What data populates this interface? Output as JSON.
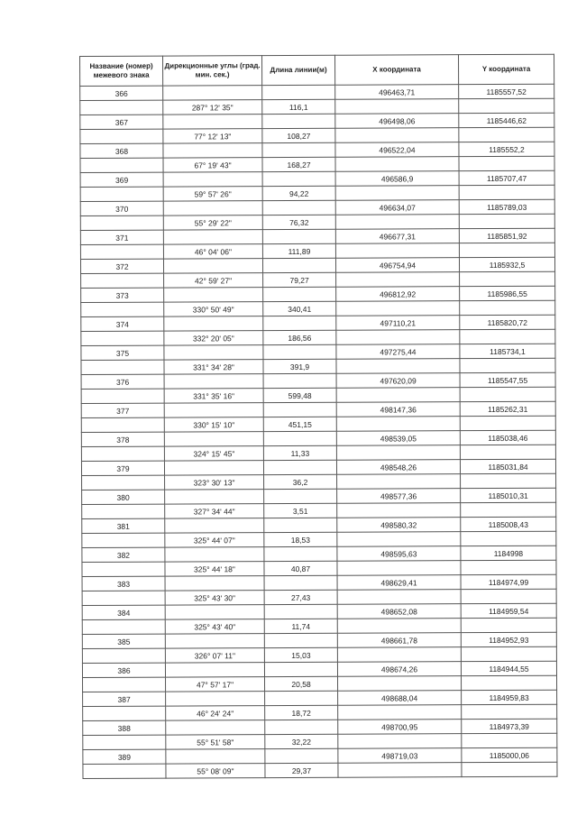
{
  "headers": {
    "name": "Название (номер) межевого знака",
    "angle": "Дирекционные углы (град. мин. сек.)",
    "length": "Длина линии(м)",
    "x": "X координата",
    "y": "Y координата"
  },
  "points": [
    {
      "name": "366",
      "x": "496463,71",
      "y": "1185557,52",
      "angle": "287° 12' 35\"",
      "length": "116,1"
    },
    {
      "name": "367",
      "x": "496498,06",
      "y": "1185446,62",
      "angle": "77° 12' 13\"",
      "length": "108,27"
    },
    {
      "name": "368",
      "x": "496522,04",
      "y": "1185552,2",
      "angle": "67° 19' 43\"",
      "length": "168,27"
    },
    {
      "name": "369",
      "x": "496586,9",
      "y": "1185707,47",
      "angle": "59° 57' 26\"",
      "length": "94,22"
    },
    {
      "name": "370",
      "x": "496634,07",
      "y": "1185789,03",
      "angle": "55° 29' 22\"",
      "length": "76,32"
    },
    {
      "name": "371",
      "x": "496677,31",
      "y": "1185851,92",
      "angle": "46° 04' 06\"",
      "length": "111,89"
    },
    {
      "name": "372",
      "x": "496754,94",
      "y": "1185932,5",
      "angle": "42° 59' 27\"",
      "length": "79,27"
    },
    {
      "name": "373",
      "x": "496812,92",
      "y": "1185986,55",
      "angle": "330° 50' 49\"",
      "length": "340,41"
    },
    {
      "name": "374",
      "x": "497110,21",
      "y": "1185820,72",
      "angle": "332° 20' 05\"",
      "length": "186,56"
    },
    {
      "name": "375",
      "x": "497275,44",
      "y": "1185734,1",
      "angle": "331° 34' 28\"",
      "length": "391,9"
    },
    {
      "name": "376",
      "x": "497620,09",
      "y": "1185547,55",
      "angle": "331° 35' 16\"",
      "length": "599,48"
    },
    {
      "name": "377",
      "x": "498147,36",
      "y": "1185262,31",
      "angle": "330° 15' 10\"",
      "length": "451,15"
    },
    {
      "name": "378",
      "x": "498539,05",
      "y": "1185038,46",
      "angle": "324° 15' 45\"",
      "length": "11,33"
    },
    {
      "name": "379",
      "x": "498548,26",
      "y": "1185031,84",
      "angle": "323° 30' 13\"",
      "length": "36,2"
    },
    {
      "name": "380",
      "x": "498577,36",
      "y": "1185010,31",
      "angle": "327° 34' 44\"",
      "length": "3,51"
    },
    {
      "name": "381",
      "x": "498580,32",
      "y": "1185008,43",
      "angle": "325° 44' 07\"",
      "length": "18,53"
    },
    {
      "name": "382",
      "x": "498595,63",
      "y": "1184998",
      "angle": "325° 44' 18\"",
      "length": "40,87"
    },
    {
      "name": "383",
      "x": "498629,41",
      "y": "1184974,99",
      "angle": "325° 43' 30\"",
      "length": "27,43"
    },
    {
      "name": "384",
      "x": "498652,08",
      "y": "1184959,54",
      "angle": "325° 43' 40\"",
      "length": "11,74"
    },
    {
      "name": "385",
      "x": "498661,78",
      "y": "1184952,93",
      "angle": "326° 07' 11\"",
      "length": "15,03"
    },
    {
      "name": "386",
      "x": "498674,26",
      "y": "1184944,55",
      "angle": "47° 57' 17\"",
      "length": "20,58"
    },
    {
      "name": "387",
      "x": "498688,04",
      "y": "1184959,83",
      "angle": "46° 24' 24\"",
      "length": "18,72"
    },
    {
      "name": "388",
      "x": "498700,95",
      "y": "1184973,39",
      "angle": "55° 51' 58\"",
      "length": "32,22"
    },
    {
      "name": "389",
      "x": "498719,03",
      "y": "1185000,06",
      "angle": "55° 08' 09\"",
      "length": "29,37"
    }
  ]
}
